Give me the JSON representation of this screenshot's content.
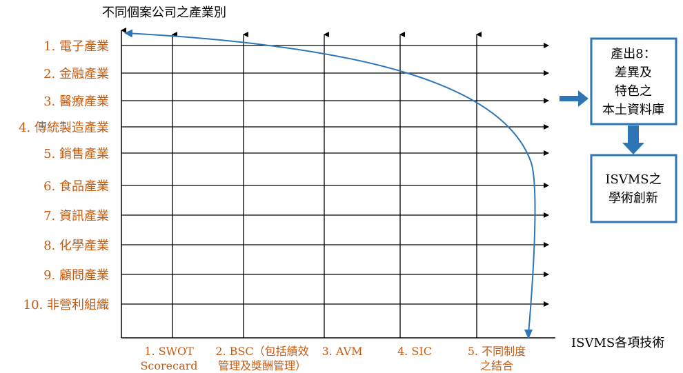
{
  "y_axis_title": "不同個案公司之產業別",
  "x_axis_title": "ISVMS各項技術",
  "industries": [
    "1. 電子產業",
    "2. 金融產業",
    "3. 醫療產業",
    "4. 傳統製造產業",
    "5. 銷售產業",
    "6. 食品產業",
    "7. 資訊產業",
    "8. 化學產業",
    "9. 顧問產業",
    "10. 非營利組織"
  ],
  "techniques": [
    {
      "line1": "1. SWOT",
      "line2": "Scorecard"
    },
    {
      "line1": "2. BSC（包括績效",
      "line2": "管理及獎酬管理）"
    },
    {
      "line1": "3. AVM",
      "line2": ""
    },
    {
      "line1": "4. SIC",
      "line2": ""
    },
    {
      "line1": "5. 不同制度",
      "line2": "之結合"
    }
  ],
  "output_box": {
    "lines": [
      "產出8：",
      "差異及",
      "特色之",
      "本土資料庫"
    ]
  },
  "innovation_box": {
    "lines": [
      "ISVMS之",
      "學術創新"
    ]
  },
  "colors": {
    "label_orange": "#c55a11",
    "accent_blue": "#2e75b6",
    "line_black": "#000000"
  }
}
